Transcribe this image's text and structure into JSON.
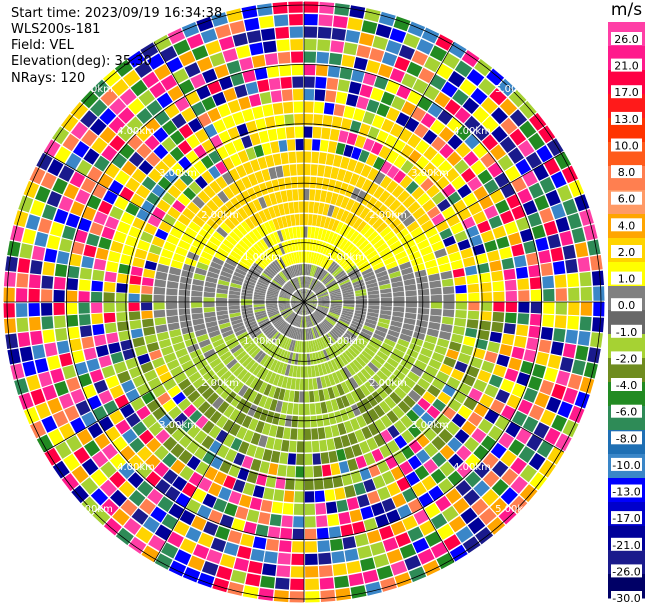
{
  "header": {
    "start_time": "Start time: 2023/09/19 16:34:38",
    "instrument": "WLS200s-181",
    "field": "Field: VEL",
    "elevation": "Elevation(deg): 35.30",
    "nrays": "NRays: 120"
  },
  "chart_data": {
    "type": "heatmap",
    "projection": "polar-ppi",
    "nrays": 120,
    "range_rings_km": [
      1.0,
      2.0,
      3.0,
      4.0,
      5.0
    ],
    "ring_label_text": "km",
    "ring_labels": {
      "1.0": [
        "1.00km",
        "1.00km",
        "1.00km",
        "1.00km"
      ],
      "2.0": [
        "2.00km",
        "2.00km",
        "2.00km",
        "2.00km"
      ],
      "3.0": [
        "3.00km",
        "3.00km",
        "3.00km",
        "3.00km"
      ],
      "4.0": [
        "4.00km",
        "4.00km",
        "4.00km",
        "4.00km"
      ],
      "5.0": [
        "5.00km",
        "5.00km",
        "5.00km",
        "5.00km"
      ]
    },
    "max_range_km": 6.3,
    "colorbar": {
      "unit": "m/s",
      "ticks": [
        "26.0",
        "21.0",
        "17.0",
        "13.0",
        "10.0",
        "8.0",
        "6.0",
        "4.0",
        "2.0",
        "1.0",
        "0.0",
        "-1.0",
        "-2.0",
        "-4.0",
        "-6.0",
        "-8.0",
        "-10.0",
        "-13.0",
        "-17.0",
        "-21.0",
        "-26.0",
        "-30.0"
      ],
      "colors": [
        "#ff3fa6",
        "#ff1a8c",
        "#ff0044",
        "#ff1a1a",
        "#ff3300",
        "#ff5a1a",
        "#ff7f50",
        "#ff9a66",
        "#ffa500",
        "#ffd400",
        "#ffff00",
        "#808080",
        "#686868",
        "#a6d233",
        "#6f8c1f",
        "#228b22",
        "#2e8b57",
        "#1e6fb4",
        "#3a86c8",
        "#0000ff",
        "#0000cc",
        "#000099",
        "#1a1a8c",
        "#000066"
      ]
    },
    "pattern": {
      "near_range_colors": [
        "#808080",
        "#808080",
        "#a6d233",
        "#6f8c1f",
        "#ffd400",
        "#ffff00"
      ],
      "noise_colors": [
        "#ff1a8c",
        "#ff3fa6",
        "#ff0044",
        "#0000ff",
        "#000099",
        "#1a1a8c",
        "#ffd400",
        "#ffff00",
        "#228b22",
        "#2e8b57",
        "#ffa500",
        "#3a86c8",
        "#ff7f50",
        "#a6d233"
      ]
    }
  }
}
